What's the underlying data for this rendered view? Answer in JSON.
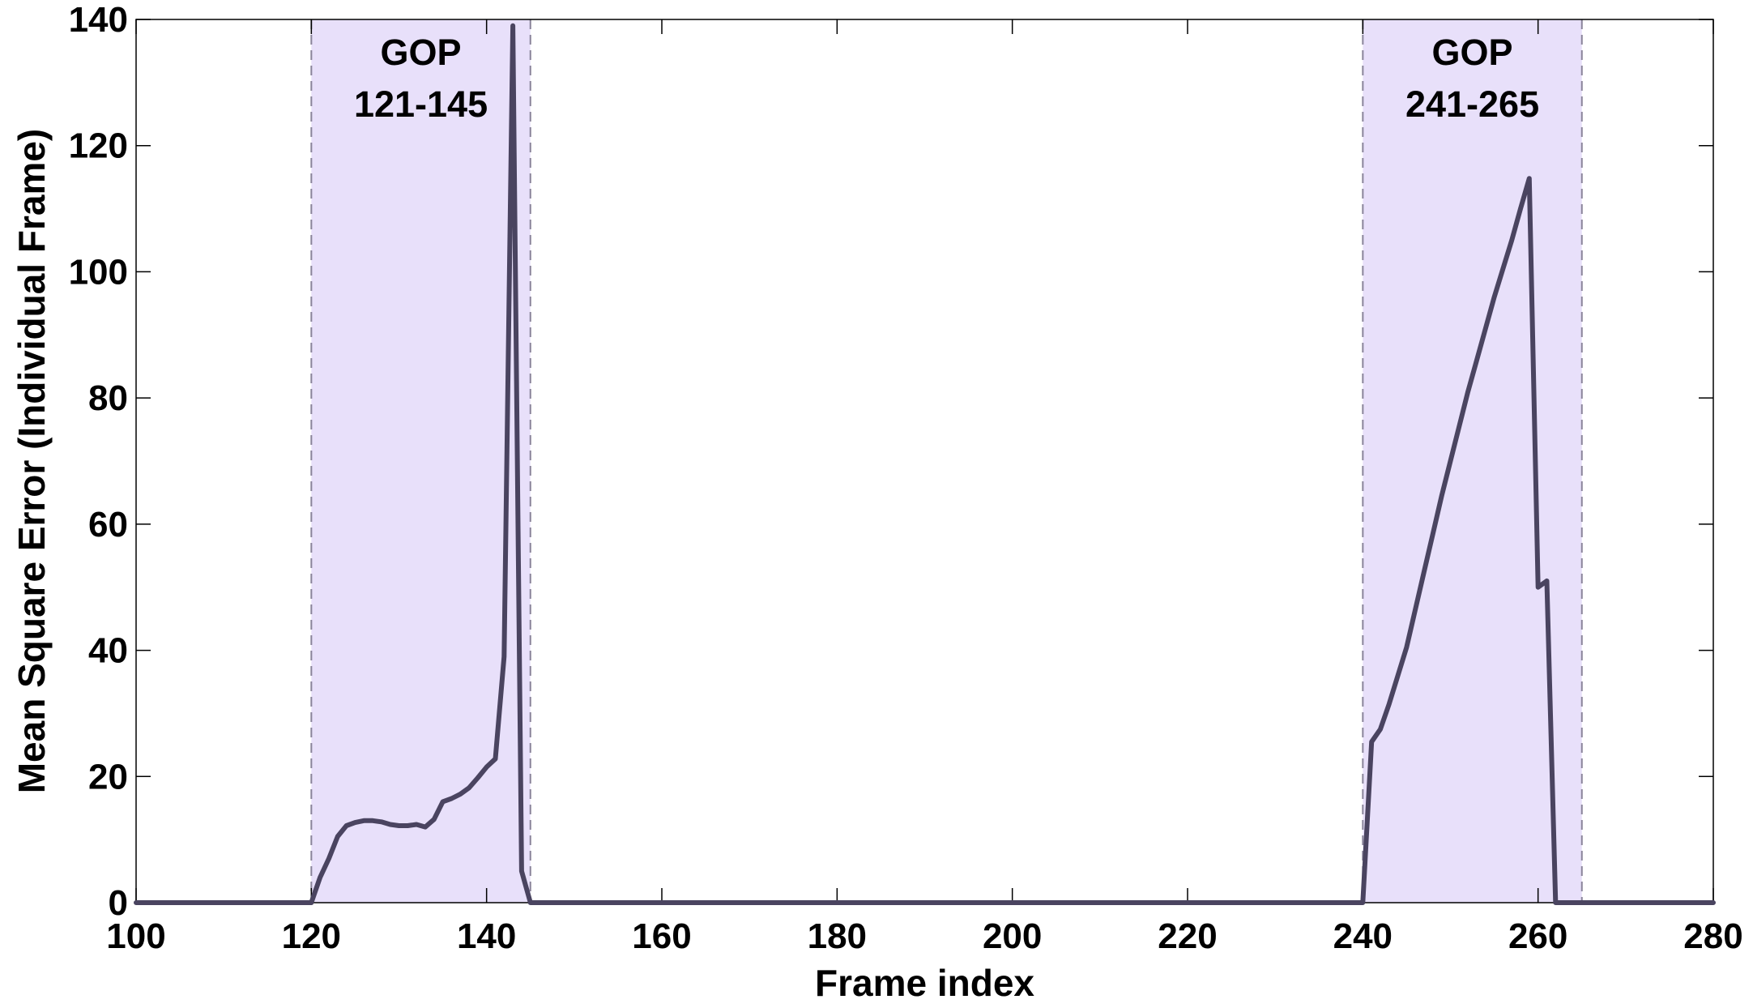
{
  "chart_data": {
    "type": "line",
    "title": "",
    "xlabel": "Frame index",
    "ylabel": "Mean Square Error (Individual Frame)",
    "xlim": [
      100,
      280
    ],
    "ylim": [
      0,
      140
    ],
    "xticks": [
      100,
      120,
      140,
      160,
      180,
      200,
      220,
      240,
      260,
      280
    ],
    "yticks": [
      0,
      20,
      40,
      60,
      80,
      100,
      120,
      140
    ],
    "grid": false,
    "legend": "none",
    "colors": {
      "line": "#4a4460",
      "band": "#e8e0fa",
      "band_border": "#8a849a"
    },
    "regions": [
      {
        "x_start": 120,
        "x_end": 145,
        "label_line1": "GOP",
        "label_line2": "121-145"
      },
      {
        "x_start": 240,
        "x_end": 265,
        "label_line1": "GOP",
        "label_line2": "241-265"
      }
    ],
    "series": [
      {
        "x": [
          100,
          120,
          121,
          122,
          123,
          124,
          125,
          126,
          127,
          128,
          129,
          130,
          131,
          132,
          133,
          134,
          135,
          136,
          137,
          138,
          139,
          140,
          141,
          142,
          143,
          144,
          145,
          240,
          241,
          242,
          243,
          244,
          245,
          246,
          247,
          248,
          249,
          250,
          251,
          252,
          253,
          254,
          255,
          256,
          257,
          258,
          259,
          260,
          261,
          262,
          263,
          264,
          265,
          280
        ],
        "y": [
          0,
          0,
          4,
          7,
          10.5,
          12.2,
          12.7,
          13,
          13,
          12.8,
          12.4,
          12.2,
          12.2,
          12.4,
          12,
          13.2,
          16,
          16.5,
          17.2,
          18.2,
          19.8,
          21.5,
          22.8,
          39,
          139,
          5,
          0,
          0,
          25.5,
          27.5,
          31.5,
          36,
          40.5,
          46.5,
          52.5,
          58.5,
          64.5,
          70,
          75.5,
          81,
          86,
          91,
          96,
          100.5,
          105,
          110,
          114.8,
          50,
          51,
          0,
          0,
          0,
          0,
          0
        ]
      }
    ]
  }
}
